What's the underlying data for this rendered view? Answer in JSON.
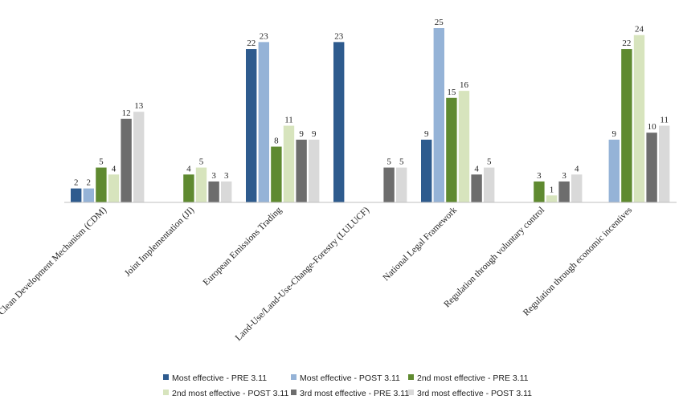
{
  "chart_data": {
    "type": "bar",
    "title": "",
    "xlabel": "",
    "ylabel": "",
    "ylim": [
      0,
      25
    ],
    "grid": false,
    "legend_position": "bottom",
    "categories": [
      "Clean Development Mechanism (CDM)",
      "Joint Implementation (JI)",
      "European Emissions Trading",
      "Land-Use/Land-Use-Change-Forestry (LULUCF)",
      "National Legal Framework",
      "Regulation through voluntary control",
      "Regulation through economic incentives"
    ],
    "series": [
      {
        "name": "Most effective - PRE 3.11",
        "color": "#2e5b8e",
        "values": [
          2,
          null,
          22,
          23,
          9,
          null,
          null
        ]
      },
      {
        "name": "Most effective - POST 3.11",
        "color": "#95b3d7",
        "values": [
          2,
          null,
          23,
          null,
          25,
          null,
          9
        ]
      },
      {
        "name": "2nd most effective - PRE 3.11",
        "color": "#5f8a30",
        "values": [
          5,
          4,
          8,
          null,
          15,
          3,
          22
        ]
      },
      {
        "name": "2nd most effective - POST 3.11",
        "color": "#d7e4bd",
        "values": [
          4,
          5,
          11,
          null,
          16,
          1,
          24
        ]
      },
      {
        "name": "3rd most effective - PRE 3.11",
        "color": "#6d6d6d",
        "values": [
          12,
          3,
          9,
          5,
          4,
          3,
          10
        ]
      },
      {
        "name": "3rd most effective - POST 3.11",
        "color": "#d9d9d9",
        "values": [
          13,
          3,
          9,
          5,
          5,
          4,
          11
        ]
      }
    ]
  }
}
